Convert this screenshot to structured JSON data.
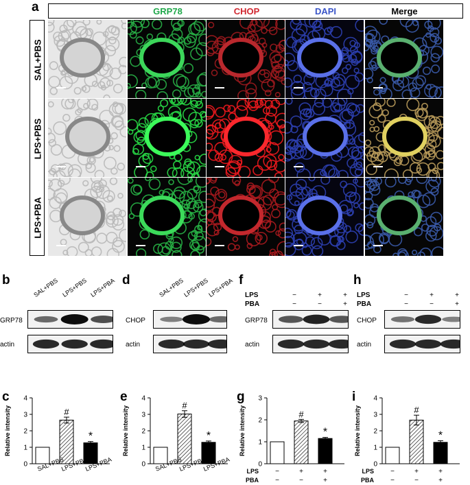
{
  "panel_a": {
    "letter": "a",
    "columns": [
      {
        "label": "",
        "color": "#000000"
      },
      {
        "label": "GRP78",
        "color": "#1fa84a"
      },
      {
        "label": "CHOP",
        "color": "#d0272f"
      },
      {
        "label": "DAPI",
        "color": "#3a55c8"
      },
      {
        "label": "Merge",
        "color": "#000000"
      }
    ],
    "rows": [
      "SAL+PBS",
      "LPS+PBS",
      "LPS+PBA"
    ]
  },
  "blots": {
    "b": {
      "letter": "b",
      "protein": "GRP78",
      "loading": "actin",
      "lanes": [
        "SAL+PBS",
        "LPS+PBS",
        "LPS+PBA"
      ]
    },
    "d": {
      "letter": "d",
      "protein": "CHOP",
      "loading": "actin",
      "lanes": [
        "SAL+PBS",
        "LPS+PBS",
        "LPS+PBA"
      ]
    },
    "f": {
      "letter": "f",
      "protein": "GRP78",
      "loading": "actin",
      "lps_label": "LPS",
      "pba_label": "PBA",
      "lps": [
        "−",
        "+",
        "+"
      ],
      "pba": [
        "−",
        "−",
        "+"
      ]
    },
    "h": {
      "letter": "h",
      "protein": "CHOP",
      "loading": "actin",
      "lps_label": "LPS",
      "pba_label": "PBA",
      "lps": [
        "−",
        "+",
        "+"
      ],
      "pba": [
        "−",
        "−",
        "+"
      ]
    }
  },
  "bar_axis": {
    "ylabel": "Relative intensity",
    "ticks": [
      "0",
      "1",
      "2",
      "3",
      "4"
    ]
  },
  "chart_data": [
    {
      "panel": "c",
      "type": "bar",
      "categories": [
        "SAL+PBS",
        "LPS+PBS",
        "LPS+PBA"
      ],
      "values": [
        1.0,
        2.65,
        1.27
      ],
      "errors": [
        0.0,
        0.18,
        0.08
      ],
      "marks": [
        "",
        "#",
        "*"
      ],
      "ylabel": "Relative intensity",
      "ylim": [
        0,
        4
      ]
    },
    {
      "panel": "e",
      "type": "bar",
      "categories": [
        "SAL+PBS",
        "LPS+PBS",
        "LPS+PBA"
      ],
      "values": [
        1.0,
        3.02,
        1.3
      ],
      "errors": [
        0.0,
        0.2,
        0.08
      ],
      "marks": [
        "",
        "#",
        "*"
      ],
      "ylabel": "Relative intensity",
      "ylim": [
        0,
        4
      ]
    },
    {
      "panel": "g",
      "type": "bar",
      "categories": [
        "",
        "",
        ""
      ],
      "lps": [
        "−",
        "+",
        "+"
      ],
      "pba": [
        "−",
        "−",
        "+"
      ],
      "values": [
        1.0,
        1.95,
        1.15
      ],
      "errors": [
        0.0,
        0.07,
        0.05
      ],
      "marks": [
        "",
        "#",
        "*"
      ],
      "ylabel": "Relative intensity",
      "ylim": [
        0,
        3
      ]
    },
    {
      "panel": "i",
      "type": "bar",
      "categories": [
        "",
        "",
        ""
      ],
      "lps": [
        "−",
        "+",
        "+"
      ],
      "pba": [
        "−",
        "−",
        "+"
      ],
      "values": [
        1.0,
        2.65,
        1.3
      ],
      "errors": [
        0.0,
        0.3,
        0.1
      ],
      "marks": [
        "",
        "#",
        "*"
      ],
      "ylabel": "Relative intensity",
      "ylim": [
        0,
        4
      ]
    }
  ]
}
